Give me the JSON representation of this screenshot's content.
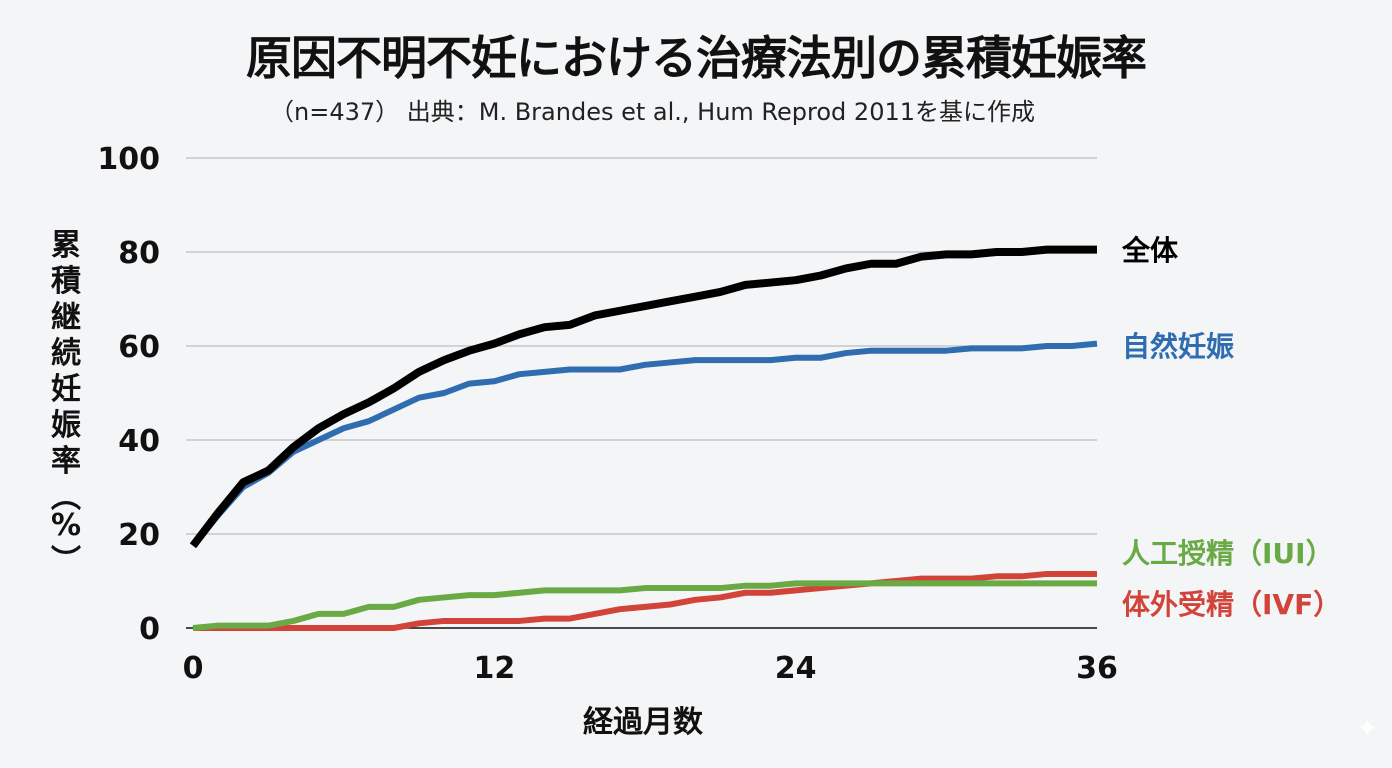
{
  "title": "原因不明不妊における治療法別の累積妊娠率",
  "subtitle": "（n=437） 出典：M. Brandes et al., Hum Reprod 2011を基に作成",
  "watermark_icon": "sparkle-icon",
  "chart_data": {
    "type": "line",
    "title": "原因不明不妊における治療法別の累積妊娠率",
    "subtitle": "（n=437） 出典：M. Brandes et al., Hum Reprod 2011を基に作成",
    "xlabel": "経過月数",
    "ylabel": "累積継続妊娠率（%）",
    "xlim": [
      0,
      36
    ],
    "ylim": [
      0,
      100
    ],
    "xticks": [
      0,
      12,
      24,
      36
    ],
    "yticks": [
      0,
      20,
      40,
      60,
      80,
      100
    ],
    "grid": "horizontal",
    "legend_position": "right, inline labels at line ends",
    "x": [
      0,
      1,
      2,
      3,
      4,
      5,
      6,
      7,
      8,
      9,
      10,
      11,
      12,
      13,
      14,
      15,
      16,
      17,
      18,
      19,
      20,
      21,
      22,
      23,
      24,
      25,
      26,
      27,
      28,
      29,
      30,
      31,
      32,
      33,
      34,
      35,
      36
    ],
    "series": [
      {
        "name": "全体",
        "color": "#000000",
        "values": [
          17.5,
          24.5,
          31,
          33.5,
          38.5,
          42.5,
          45.5,
          48,
          51,
          54.5,
          57,
          59,
          60.5,
          62.5,
          64,
          64.5,
          66.5,
          67.5,
          68.5,
          69.5,
          70.5,
          71.5,
          73,
          73.5,
          74,
          75,
          76.5,
          77.5,
          77.5,
          79,
          79.5,
          79.5,
          80,
          80,
          80.5,
          80.5,
          80.5
        ]
      },
      {
        "name": "自然妊娠",
        "color": "#2f6db0",
        "values": [
          17.5,
          24,
          30,
          33,
          37.5,
          40,
          42.5,
          44,
          46.5,
          49,
          50,
          52,
          52.5,
          54,
          54.5,
          55,
          55,
          55,
          56,
          56.5,
          57,
          57,
          57,
          57,
          57.5,
          57.5,
          58.5,
          59,
          59,
          59,
          59,
          59.5,
          59.5,
          59.5,
          60,
          60,
          60.5
        ]
      },
      {
        "name": "人工授精（IUI）",
        "color": "#6aaa45",
        "values": [
          0,
          0.5,
          0.5,
          0.5,
          1.5,
          3,
          3,
          4.5,
          4.5,
          6,
          6.5,
          7,
          7,
          7.5,
          8,
          8,
          8,
          8,
          8.5,
          8.5,
          8.5,
          8.5,
          9,
          9,
          9.5,
          9.5,
          9.5,
          9.5,
          9.5,
          9.5,
          9.5,
          9.5,
          9.5,
          9.5,
          9.5,
          9.5,
          9.5
        ]
      },
      {
        "name": "体外受精（IVF）",
        "color": "#d2443a",
        "values": [
          0,
          0,
          0,
          0,
          0,
          0,
          0,
          0,
          0,
          1,
          1.5,
          1.5,
          1.5,
          1.5,
          2,
          2,
          3,
          4,
          4.5,
          5,
          6,
          6.5,
          7.5,
          7.5,
          8,
          8.5,
          9,
          9.5,
          10,
          10.5,
          10.5,
          10.5,
          11,
          11,
          11.5,
          11.5,
          11.5
        ]
      }
    ]
  }
}
